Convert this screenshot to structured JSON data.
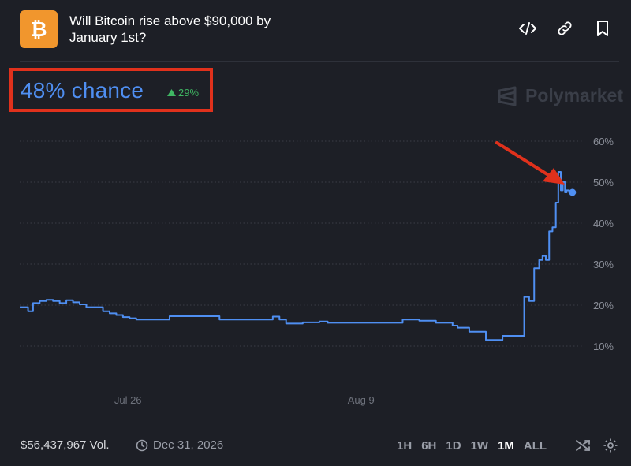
{
  "header": {
    "title": "Will Bitcoin rise above $90,000 by January 1st?",
    "logo_icon": "bitcoin-icon",
    "icons": [
      "embed-icon",
      "link-icon",
      "bookmark-icon"
    ]
  },
  "summary": {
    "chance_text": "48% chance",
    "delta_text": "29%",
    "delta_direction": "up",
    "brand": "Polymarket"
  },
  "colors": {
    "accent": "#4f8ff2",
    "positive": "#3fb663",
    "highlight_box": "#e0311c",
    "annotation_arrow": "#e0311c",
    "logo": "#f1962d"
  },
  "chart_data": {
    "type": "line",
    "title": "",
    "xlabel": "",
    "ylabel": "",
    "y_tick_labels": [
      "60%",
      "50%",
      "40%",
      "30%",
      "20%",
      "10%"
    ],
    "y_ticks": [
      60,
      50,
      40,
      30,
      20,
      10
    ],
    "ylim": [
      10,
      60
    ],
    "x_tick_labels": [
      "Jul 26",
      "Aug 9"
    ],
    "x_ticks": [
      6.5,
      20.5
    ],
    "xlim": [
      0,
      33.4
    ],
    "grid": true,
    "series": [
      {
        "name": "",
        "x": [
          0,
          0.5,
          0.8,
          1.2,
          1.6,
          2.0,
          2.4,
          2.8,
          3.2,
          3.6,
          4.0,
          4.4,
          4.8,
          5.0,
          5.4,
          5.8,
          6.2,
          6.6,
          7.0,
          7.5,
          8.0,
          8.5,
          9.0,
          9.5,
          10.0,
          11.0,
          12.0,
          13.0,
          14.0,
          15.0,
          15.2,
          15.6,
          16.0,
          16.5,
          17.0,
          17.5,
          18.0,
          18.5,
          19.0,
          20.0,
          21.0,
          22.0,
          23.0,
          24.0,
          25.0,
          26.0,
          26.3,
          27.0,
          28.0,
          29.0,
          30.0,
          30.3,
          30.6,
          30.9,
          31.2,
          31.4,
          31.6,
          31.8,
          32.0,
          32.2,
          32.35,
          32.5,
          32.62,
          32.75,
          32.85,
          33.0,
          33.2,
          33.4
        ],
        "y": [
          19.5,
          18.5,
          20.5,
          21.0,
          21.3,
          21.0,
          20.5,
          21.2,
          20.7,
          20.2,
          19.5,
          19.5,
          19.5,
          18.5,
          18.0,
          17.6,
          17.1,
          16.8,
          16.5,
          16.5,
          16.5,
          16.5,
          17.3,
          17.3,
          17.3,
          17.3,
          16.5,
          16.5,
          16.5,
          16.5,
          17.2,
          16.5,
          15.5,
          15.5,
          15.8,
          15.8,
          16.0,
          15.7,
          15.7,
          15.7,
          15.7,
          15.7,
          16.5,
          16.2,
          15.7,
          15.0,
          14.5,
          13.5,
          11.5,
          12.5,
          12.5,
          22.0,
          21.0,
          29.0,
          31.0,
          32.0,
          31.0,
          38.0,
          39.0,
          45.0,
          52.5,
          48.0,
          50.0,
          47.5,
          48.0,
          47.5,
          47.5,
          47.5
        ]
      }
    ],
    "current_point": {
      "x": 33.2,
      "y": 47.5
    }
  },
  "footer": {
    "volume": "$56,437,967 Vol.",
    "end_date": "Dec 31, 2026",
    "clock_icon": "clock-icon",
    "ranges": [
      "1H",
      "6H",
      "1D",
      "1W",
      "1M",
      "ALL"
    ],
    "active_range": "1M",
    "extra_icons": [
      "shuffle-icon",
      "settings-icon"
    ]
  }
}
